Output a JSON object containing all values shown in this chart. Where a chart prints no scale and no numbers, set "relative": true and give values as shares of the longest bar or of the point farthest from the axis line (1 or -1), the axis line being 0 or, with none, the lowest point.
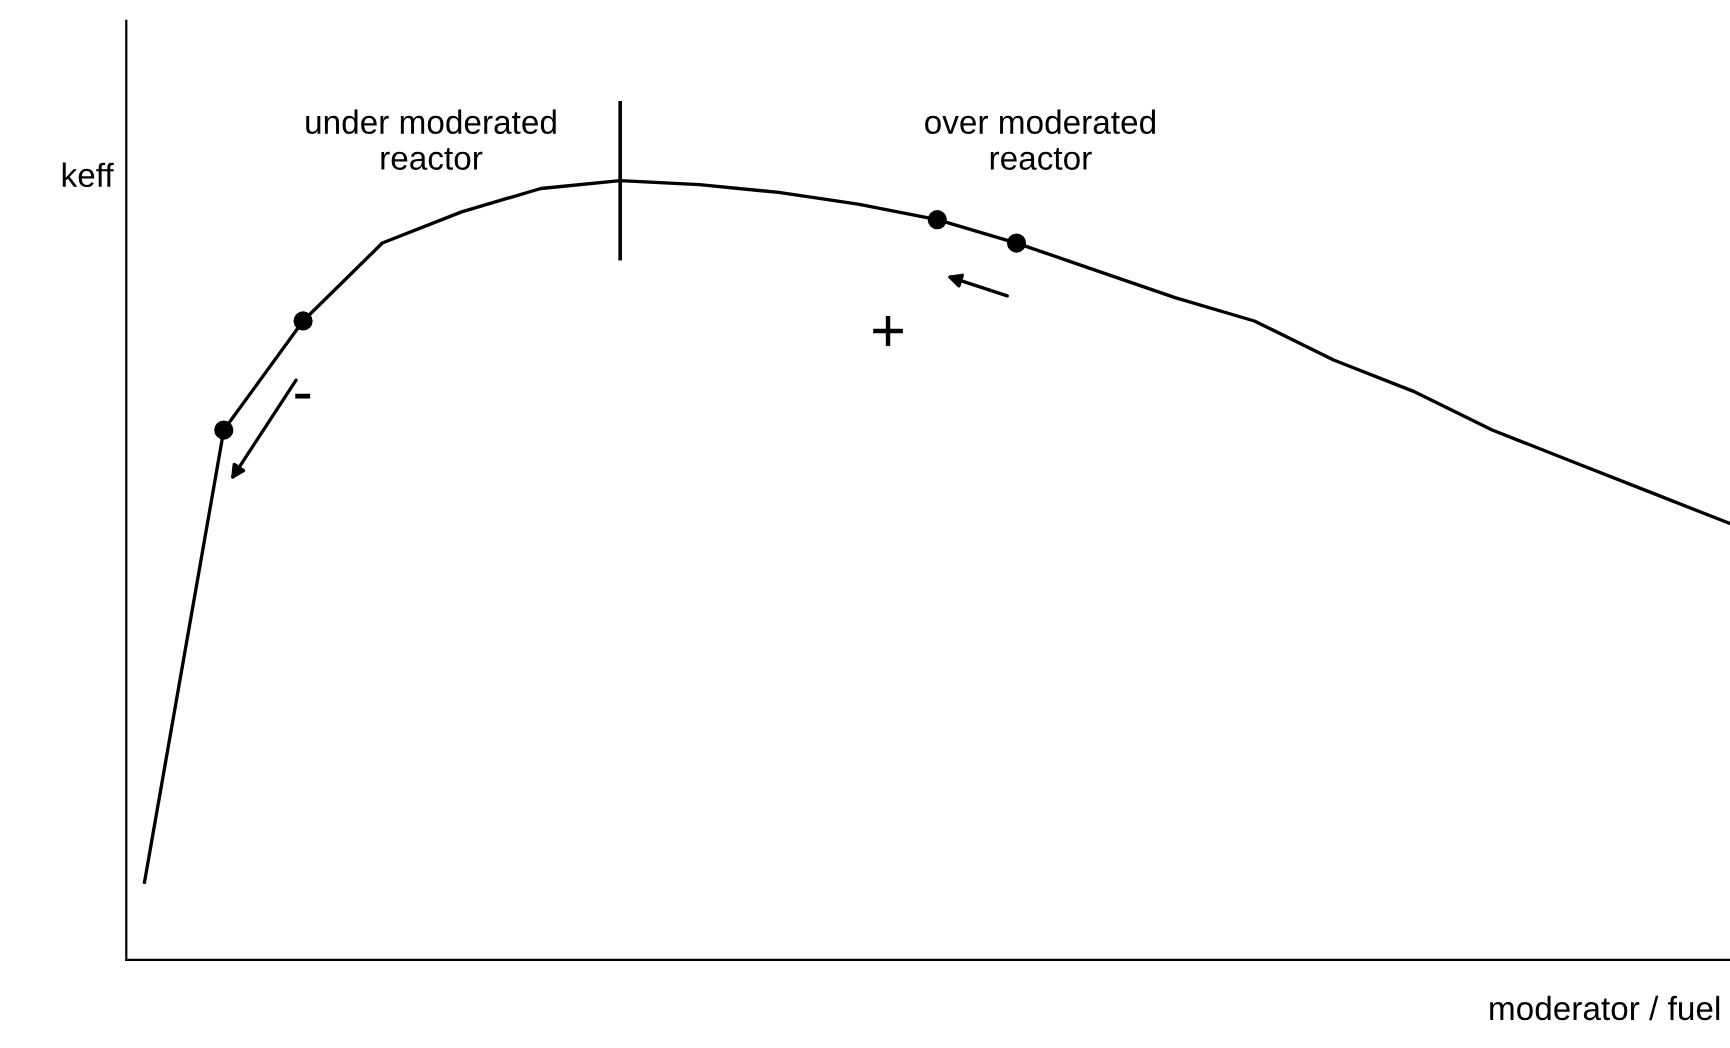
{
  "chart_data": {
    "type": "line",
    "relative": true,
    "ylabel": "keff",
    "xlabel": "moderator / fuel",
    "categories": [
      null,
      null,
      null,
      null,
      null,
      null,
      null,
      null,
      null,
      null,
      null,
      null,
      null,
      null,
      null,
      null,
      null,
      null,
      null,
      null,
      null
    ],
    "series": [
      {
        "color": "#000000",
        "values": [
          0.1,
          0.68,
          0.82,
          0.92,
          0.96,
          0.99,
          1.0,
          0.995,
          0.985,
          0.97,
          0.95,
          0.92,
          0.885,
          0.85,
          0.82,
          0.77,
          0.73,
          0.68,
          0.64,
          0.6,
          0.56
        ]
      }
    ],
    "annotations": [
      "under moderated\nreactor",
      "over moderated\nreactor",
      "-",
      "+"
    ],
    "legend": false
  }
}
